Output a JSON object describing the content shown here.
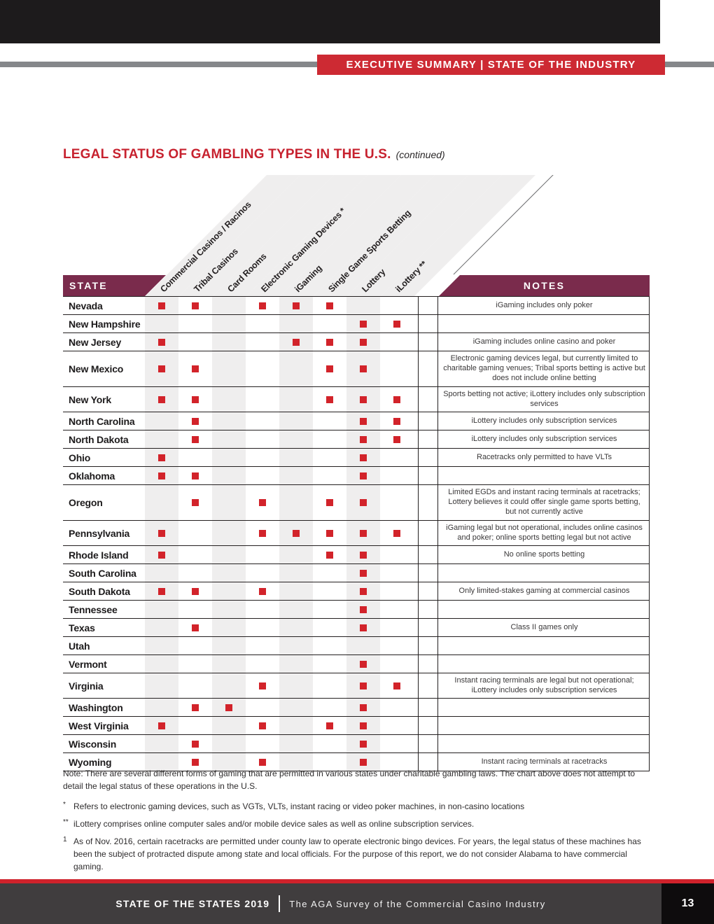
{
  "page": {
    "badge": "EXECUTIVE SUMMARY  |  STATE OF THE INDUSTRY",
    "title": "LEGAL STATUS OF GAMBLING TYPES IN THE U.S.",
    "title_suffix": "(continued)",
    "footer_left": "STATE OF THE STATES 2019",
    "footer_right": "The AGA Survey of the Commercial Casino Industry",
    "page_number": "13"
  },
  "colors": {
    "accent_red": "#cd2a33",
    "square_red": "#d2232a",
    "maroon": "#7a2b4c",
    "stripe_gray": "#efeeee",
    "footer_gray": "#403d3e",
    "rule_gray": "#85878a",
    "ink": "#231f20"
  },
  "table": {
    "state_header": "STATE",
    "notes_header": "NOTES",
    "columns": [
      "Commercial Casinos / Racinos",
      "Tribal Casinos",
      "Card Rooms",
      "Electronic Gaming Devices *",
      "iGaming",
      "Single Game Sports Betting",
      "Lottery",
      "iLottery **"
    ],
    "rows": [
      {
        "state": "Nevada",
        "checks": [
          1,
          1,
          0,
          1,
          1,
          1,
          0,
          0
        ],
        "note": "iGaming includes only poker",
        "note_lines": 1
      },
      {
        "state": "New Hampshire",
        "checks": [
          0,
          0,
          0,
          0,
          0,
          0,
          1,
          1
        ],
        "note": "",
        "note_lines": 1
      },
      {
        "state": "New Jersey",
        "checks": [
          1,
          0,
          0,
          0,
          1,
          1,
          1,
          0
        ],
        "note": "iGaming includes online casino and poker",
        "note_lines": 1
      },
      {
        "state": "New Mexico",
        "checks": [
          1,
          1,
          0,
          0,
          0,
          1,
          1,
          0
        ],
        "note": "Electronic gaming devices legal, but currently limited to charitable gaming venues; Tribal sports betting is active but does not include online betting",
        "note_lines": 3
      },
      {
        "state": "New York",
        "checks": [
          1,
          1,
          0,
          0,
          0,
          1,
          1,
          1
        ],
        "note": "Sports betting not active; iLottery includes only subscription services",
        "note_lines": 2
      },
      {
        "state": "North Carolina",
        "checks": [
          0,
          1,
          0,
          0,
          0,
          0,
          1,
          1
        ],
        "note": "iLottery includes only subscription services",
        "note_lines": 1
      },
      {
        "state": "North Dakota",
        "checks": [
          0,
          1,
          0,
          0,
          0,
          0,
          1,
          1
        ],
        "note": "iLottery includes only subscription services",
        "note_lines": 1
      },
      {
        "state": "Ohio",
        "checks": [
          1,
          0,
          0,
          0,
          0,
          0,
          1,
          0
        ],
        "note": "Racetracks only permitted to have VLTs",
        "note_lines": 1
      },
      {
        "state": "Oklahoma",
        "checks": [
          1,
          1,
          0,
          0,
          0,
          0,
          1,
          0
        ],
        "note": "",
        "note_lines": 1
      },
      {
        "state": "Oregon",
        "checks": [
          0,
          1,
          0,
          1,
          0,
          1,
          1,
          0
        ],
        "note": "Limited EGDs and instant racing terminals at racetracks; Lottery believes it could offer single game sports betting, but not currently active",
        "note_lines": 3
      },
      {
        "state": "Pennsylvania",
        "checks": [
          1,
          0,
          0,
          1,
          1,
          1,
          1,
          1
        ],
        "note": "iGaming legal but not operational, includes online casinos and poker; online sports betting legal but not active",
        "note_lines": 2
      },
      {
        "state": "Rhode Island",
        "checks": [
          1,
          0,
          0,
          0,
          0,
          1,
          1,
          0
        ],
        "note": "No online sports betting",
        "note_lines": 1
      },
      {
        "state": "South Carolina",
        "checks": [
          0,
          0,
          0,
          0,
          0,
          0,
          1,
          0
        ],
        "note": "",
        "note_lines": 1
      },
      {
        "state": "South Dakota",
        "checks": [
          1,
          1,
          0,
          1,
          0,
          0,
          1,
          0
        ],
        "note": "Only limited-stakes gaming at commercial casinos",
        "note_lines": 1
      },
      {
        "state": "Tennessee",
        "checks": [
          0,
          0,
          0,
          0,
          0,
          0,
          1,
          0
        ],
        "note": "",
        "note_lines": 1
      },
      {
        "state": "Texas",
        "checks": [
          0,
          1,
          0,
          0,
          0,
          0,
          1,
          0
        ],
        "note": "Class II games only",
        "note_lines": 1
      },
      {
        "state": "Utah",
        "checks": [
          0,
          0,
          0,
          0,
          0,
          0,
          0,
          0
        ],
        "note": "",
        "note_lines": 1
      },
      {
        "state": "Vermont",
        "checks": [
          0,
          0,
          0,
          0,
          0,
          0,
          1,
          0
        ],
        "note": "",
        "note_lines": 1
      },
      {
        "state": "Virginia",
        "checks": [
          0,
          0,
          0,
          1,
          0,
          0,
          1,
          1
        ],
        "note": "Instant racing terminals are legal but not operational; iLottery includes only subscription services",
        "note_lines": 2
      },
      {
        "state": "Washington",
        "checks": [
          0,
          1,
          1,
          0,
          0,
          0,
          1,
          0
        ],
        "note": "",
        "note_lines": 1
      },
      {
        "state": "West Virginia",
        "checks": [
          1,
          0,
          0,
          1,
          0,
          1,
          1,
          0
        ],
        "note": "",
        "note_lines": 1
      },
      {
        "state": "Wisconsin",
        "checks": [
          0,
          1,
          0,
          0,
          0,
          0,
          1,
          0
        ],
        "note": "",
        "note_lines": 1
      },
      {
        "state": "Wyoming",
        "checks": [
          0,
          1,
          0,
          1,
          0,
          0,
          1,
          0
        ],
        "note": "Instant racing terminals at racetracks",
        "note_lines": 1
      }
    ]
  },
  "footnotes": {
    "note": "Note: There are several different forms of gaming that are permitted in various states under charitable gambling laws. The chart above does not attempt to detail the legal status of these operations in the U.S.",
    "items": [
      {
        "marker": "*",
        "text": "Refers to electronic gaming devices, such as VGTs, VLTs, instant racing or video poker machines, in non-casino locations"
      },
      {
        "marker": "**",
        "text": "iLottery comprises online computer sales and/or mobile device sales as well as online subscription services."
      },
      {
        "marker": "1",
        "text": "As of Nov. 2016, certain racetracks are permitted under county law to operate electronic bingo devices. For years, the legal status of these machines has been the subject of protracted dispute among state and local officials. For the purpose of this report, we do not consider Alabama to have commercial gaming."
      }
    ]
  }
}
